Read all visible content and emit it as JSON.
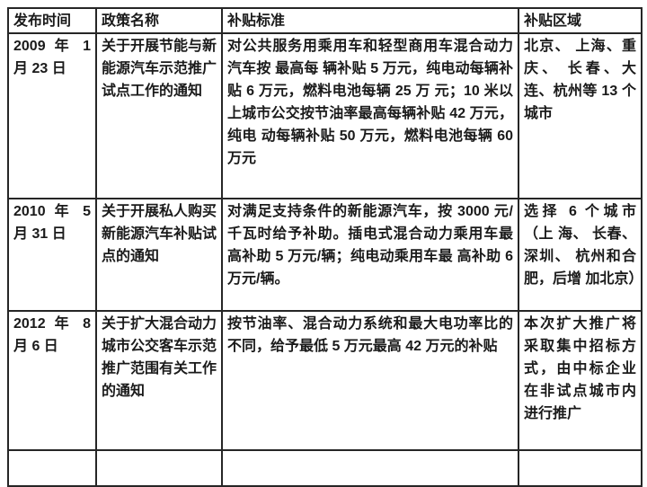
{
  "table": {
    "headers": [
      "发布时间",
      "政策名称",
      "补贴标准",
      "补贴区域"
    ],
    "rows": [
      {
        "date": "2009 年 1 月 23 日",
        "name": "关于开展节能与新能源汽车示范推广试点工作的通知",
        "standard": "对公共服务用乘用车和轻型商用车混合动力汽车按 最高每 辆补贴 5 万元，纯电动每辆补贴 6 万元，燃料电池每辆 25 万 元；10 米以上城市公交按节油率最高每辆补贴 42 万元，纯电 动每辆补贴 50 万元，燃料电池每辆 60 万元",
        "region": "北京、 上海、重庆、 长春、大连、杭州等 13 个城市"
      },
      {
        "date": "2010 年 5 月 31 日",
        "name": "关于开展私人购买新能源汽车补贴试点的通知",
        "standard": "对满足支持条件的新能源汽车，按 3000 元/千瓦时给予补助。插电式混合动力乘用车最高补助 5 万元/辆；纯电动乘用车最 高补助 6 万元/辆。",
        "region": "选择 6 个城市（上 海、 长春、深圳、 杭州和合肥，后增 加北京）"
      },
      {
        "date": "2012 年 8 月 6 日",
        "name": "关于扩大混合动力 城市公交客车示范推广范围有关工作的通知",
        "standard": "按节油率、混合动力系统和最大电功率比的不同，给予最低 5 万元最高 42 万元的补贴",
        "region": "本次扩大推广将 采取集中招标方式，由中标企业在非试点城市内进行推广"
      }
    ]
  }
}
